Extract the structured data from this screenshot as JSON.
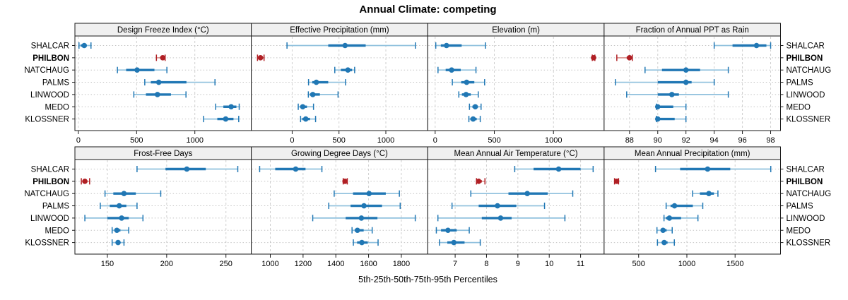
{
  "title": "Annual Climate: competing",
  "xlabel": "5th-25th-50th-75th-95th Percentiles",
  "sites": [
    "SHALCAR",
    "PHILBON",
    "NATCHAUG",
    "PALMS",
    "LINWOOD",
    "MEDO",
    "KLOSSNER"
  ],
  "highlight_site": "PHILBON",
  "colors": {
    "normal": "#2077b4",
    "normal_light": "#8fc0dd",
    "highlight": "#b01f24",
    "highlight_light": "#dc9a96",
    "strip_bg": "#f0f0f0",
    "grid": "#cfcfcf",
    "guide": "#c4c4c4",
    "border": "#1a1a1a",
    "text": "#000000"
  },
  "chart_data": {
    "type": "dotplot-percentile",
    "note": "each series value array = [p5, p25, p50, p75, p95] per site",
    "grid": "dashed vertical at ticks, dotted horizontal per row",
    "legend": "none",
    "layout": {
      "rows": 2,
      "cols": 4
    },
    "panels": [
      {
        "title": "Design Freeze Index (°C)",
        "xlim": [
          -30,
          1485
        ],
        "ticks": [
          0,
          500,
          1000
        ],
        "values": [
          [
            5,
            20,
            50,
            72,
            108
          ],
          [
            670,
            708,
            724,
            736,
            745
          ],
          [
            335,
            410,
            504,
            653,
            760
          ],
          [
            570,
            622,
            690,
            928,
            1173
          ],
          [
            476,
            580,
            679,
            795,
            924
          ],
          [
            1179,
            1245,
            1312,
            1357,
            1381
          ],
          [
            1075,
            1193,
            1265,
            1332,
            1377
          ]
        ]
      },
      {
        "title": "Effective Precipitation (mm)",
        "xlim": [
          -436,
          1447
        ],
        "ticks": [
          0,
          500,
          1000
        ],
        "values": [
          [
            -55,
            385,
            565,
            785,
            1315
          ],
          [
            -370,
            -350,
            -338,
            -320,
            -300
          ],
          [
            455,
            520,
            595,
            640,
            667
          ],
          [
            175,
            215,
            258,
            385,
            570
          ],
          [
            173,
            190,
            220,
            296,
            490
          ],
          [
            65,
            85,
            113,
            158,
            228
          ],
          [
            90,
            108,
            145,
            190,
            250
          ]
        ]
      },
      {
        "title": "Elevation (m)",
        "xlim": [
          -63,
          1428
        ],
        "ticks": [
          0,
          500,
          1000
        ],
        "values": [
          [
            5,
            48,
            96,
            224,
            425
          ],
          [
            1328,
            1334,
            1339,
            1344,
            1350
          ],
          [
            24,
            89,
            139,
            216,
            345
          ],
          [
            145,
            220,
            266,
            331,
            418
          ],
          [
            200,
            226,
            261,
            301,
            364
          ],
          [
            290,
            315,
            339,
            361,
            388
          ],
          [
            285,
            297,
            321,
            351,
            381
          ]
        ]
      },
      {
        "title": "Fraction of Annual PPT as Rain",
        "xlim": [
          86.2,
          98.7
        ],
        "ticks": [
          88,
          90,
          92,
          94,
          96,
          98
        ],
        "values": [
          [
            94.0,
            95.3,
            97.0,
            97.7,
            98.0
          ],
          [
            87.1,
            87.8,
            88.0,
            88.1,
            88.2
          ],
          [
            89.1,
            90.3,
            92.0,
            93.0,
            95.0
          ],
          [
            87.0,
            90.0,
            92.0,
            92.4,
            94.0
          ],
          [
            87.8,
            90.0,
            91.0,
            91.5,
            95.0
          ],
          [
            89.9,
            90.0,
            90.0,
            91.1,
            92.0
          ],
          [
            89.9,
            90.0,
            90.0,
            91.2,
            92.0
          ]
        ]
      },
      {
        "title": "Frost-Free Days",
        "xlim": [
          122.6,
          271.4
        ],
        "ticks": [
          150,
          200,
          250
        ],
        "values": [
          [
            175,
            199,
            217,
            233,
            260
          ],
          [
            128,
            130,
            131,
            133,
            135
          ],
          [
            148,
            155,
            164,
            174,
            195
          ],
          [
            144,
            152,
            160,
            166,
            175
          ],
          [
            131,
            150,
            162,
            168,
            180
          ],
          [
            154,
            156,
            158,
            161,
            168
          ],
          [
            154,
            157,
            159,
            161,
            164
          ]
        ]
      },
      {
        "title": "Growing Degree Days (°C)",
        "xlim": [
          884,
          1961
        ],
        "ticks": [
          1000,
          1200,
          1400,
          1600,
          1800
        ],
        "values": [
          [
            935,
            1030,
            1155,
            1215,
            1315
          ],
          [
            1445,
            1452,
            1456,
            1462,
            1470
          ],
          [
            1390,
            1505,
            1603,
            1705,
            1788
          ],
          [
            1357,
            1490,
            1572,
            1682,
            1793
          ],
          [
            1259,
            1460,
            1556,
            1654,
            1885
          ],
          [
            1499,
            1515,
            1532,
            1570,
            1622
          ],
          [
            1507,
            1530,
            1559,
            1595,
            1658
          ]
        ]
      },
      {
        "title": "Mean Annual Air Temperature (°C)",
        "xlim": [
          6.125,
          11.75
        ],
        "ticks": [
          7,
          8,
          9,
          10,
          11
        ],
        "values": [
          [
            8.9,
            9.5,
            10.3,
            11.0,
            11.4
          ],
          [
            7.68,
            7.72,
            7.75,
            7.85,
            7.95
          ],
          [
            7.5,
            8.7,
            9.3,
            9.95,
            10.75
          ],
          [
            6.9,
            7.75,
            8.35,
            8.95,
            9.85
          ],
          [
            6.45,
            7.85,
            8.45,
            8.8,
            10.5
          ],
          [
            6.4,
            6.55,
            6.77,
            7.05,
            7.45
          ],
          [
            6.5,
            6.75,
            6.96,
            7.3,
            7.8
          ]
        ]
      },
      {
        "title": "Mean Annual Precipitation (mm)",
        "xlim": [
          142,
          1971
        ],
        "ticks": [
          500,
          1000,
          1500
        ],
        "values": [
          [
            675,
            930,
            1215,
            1450,
            1870
          ],
          [
            250,
            262,
            272,
            282,
            292
          ],
          [
            1060,
            1135,
            1228,
            1281,
            1322
          ],
          [
            785,
            831,
            872,
            1062,
            1165
          ],
          [
            763,
            782,
            819,
            940,
            1115
          ],
          [
            690,
            735,
            753,
            790,
            848
          ],
          [
            695,
            740,
            765,
            800,
            870
          ]
        ]
      }
    ]
  }
}
